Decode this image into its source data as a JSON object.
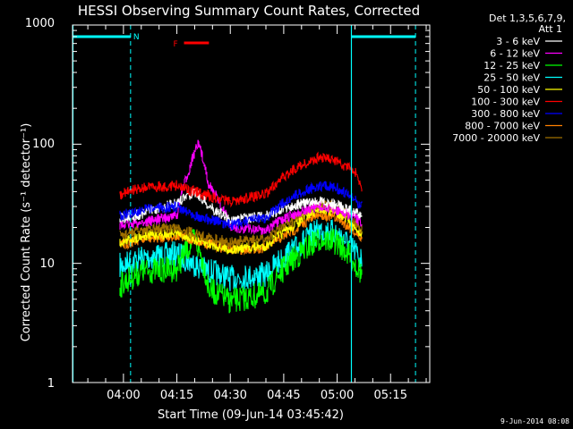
{
  "chart_data": {
    "type": "line",
    "title": "HESSI Observing Summary Count Rates, Corrected",
    "xlabel": "Start Time (09-Jun-14 03:45:42)",
    "ylabel": "Corrected Count Rate (s⁻¹ detector⁻¹)",
    "y_scale": "log",
    "ylim": [
      1,
      1000
    ],
    "xlim": [
      "03:45:42",
      "05:26"
    ],
    "x_ticks": [
      "04:00",
      "04:15",
      "04:30",
      "04:45",
      "05:00",
      "05:15"
    ],
    "y_ticks": [
      "1",
      "10",
      "100",
      "1000"
    ],
    "legend_header": [
      "Det 1,3,5,6,7,9,",
      "Att 1"
    ],
    "legend_position": "right",
    "series": [
      {
        "name": "3 - 6 keV",
        "color": "#ffffff",
        "x": [
          "03:59",
          "04:05",
          "04:15",
          "04:20",
          "04:24",
          "04:30",
          "04:40",
          "04:48",
          "04:55",
          "05:00",
          "05:07"
        ],
        "values": [
          24,
          26,
          32,
          40,
          30,
          23,
          25,
          31,
          33,
          31,
          25
        ]
      },
      {
        "name": "6 - 12 keV",
        "color": "#ff00ff",
        "x": [
          "03:59",
          "04:05",
          "04:15",
          "04:18",
          "04:21",
          "04:24",
          "04:30",
          "04:40",
          "04:48",
          "04:55",
          "05:00",
          "05:07"
        ],
        "values": [
          21,
          22,
          25,
          55,
          100,
          45,
          20,
          19,
          26,
          30,
          28,
          22
        ]
      },
      {
        "name": "12 - 25 keV",
        "color": "#00ff00",
        "x": [
          "03:59",
          "04:05",
          "04:15",
          "04:20",
          "04:24",
          "04:30",
          "04:40",
          "04:48",
          "04:55",
          "05:00",
          "05:07"
        ],
        "values": [
          6.5,
          8.5,
          9,
          16,
          6,
          4.8,
          5.5,
          11,
          16,
          15,
          8
        ]
      },
      {
        "name": "25 - 50 keV",
        "color": "#00ffff",
        "x": [
          "03:59",
          "04:05",
          "04:15",
          "04:22",
          "04:30",
          "04:40",
          "04:48",
          "04:55",
          "05:00",
          "05:07"
        ],
        "values": [
          9.5,
          11,
          12,
          9,
          7.5,
          8,
          13,
          19,
          18,
          10.5
        ]
      },
      {
        "name": "50 - 100 keV",
        "color": "#ffff00",
        "x": [
          "03:59",
          "04:05",
          "04:15",
          "04:22",
          "04:30",
          "04:40",
          "04:48",
          "04:55",
          "05:00",
          "05:07"
        ],
        "values": [
          15,
          17,
          18,
          15,
          13,
          14,
          21,
          29,
          27,
          17
        ]
      },
      {
        "name": "100 - 300 keV",
        "color": "#ff0000",
        "x": [
          "03:59",
          "04:05",
          "04:15",
          "04:22",
          "04:30",
          "04:40",
          "04:48",
          "04:55",
          "05:00",
          "05:05",
          "05:07"
        ],
        "values": [
          38,
          43,
          45,
          38,
          33,
          38,
          62,
          77,
          72,
          58,
          42
        ]
      },
      {
        "name": "300 - 800 keV",
        "color": "#0000ff",
        "x": [
          "03:59",
          "04:05",
          "04:15",
          "04:22",
          "04:30",
          "04:40",
          "04:48",
          "04:55",
          "05:00",
          "05:07"
        ],
        "values": [
          25,
          28,
          30,
          24,
          21,
          24,
          37,
          45,
          43,
          30
        ]
      },
      {
        "name": "800 - 7000 keV",
        "color": "#ff8000",
        "x": [
          "03:59",
          "04:05",
          "04:15",
          "04:22",
          "04:30",
          "04:40",
          "04:48",
          "04:55",
          "05:00",
          "05:07"
        ],
        "values": [
          14,
          16,
          17,
          15,
          13,
          13.5,
          19,
          26,
          24,
          16
        ]
      },
      {
        "name": "7000 - 20000 keV",
        "color": "#a07000",
        "x": [
          "03:59",
          "04:05",
          "04:15",
          "04:22",
          "04:30",
          "04:40",
          "04:48",
          "04:55",
          "05:00",
          "05:07"
        ],
        "values": [
          17,
          19,
          20,
          17,
          15,
          16,
          23,
          32,
          30,
          19
        ]
      }
    ],
    "annotations": [
      {
        "text": "N",
        "color": "#00ffff"
      },
      {
        "text": "F",
        "color": "#ff0000"
      }
    ],
    "flag_bars": {
      "night": {
        "color": "#00ffff",
        "ranges": [
          [
            "03:45:42",
            "04:02"
          ],
          [
            "05:04",
            "05:22"
          ]
        ]
      },
      "flare": {
        "color": "#ff0000",
        "ranges": [
          [
            "04:17",
            "04:24"
          ]
        ]
      }
    },
    "vertical_lines": {
      "solid": [
        "03:45:42",
        "05:04"
      ],
      "dashed": [
        "04:02",
        "05:22"
      ],
      "color": "#00ffff"
    },
    "footer": "9-Jun-2014 08:08"
  }
}
